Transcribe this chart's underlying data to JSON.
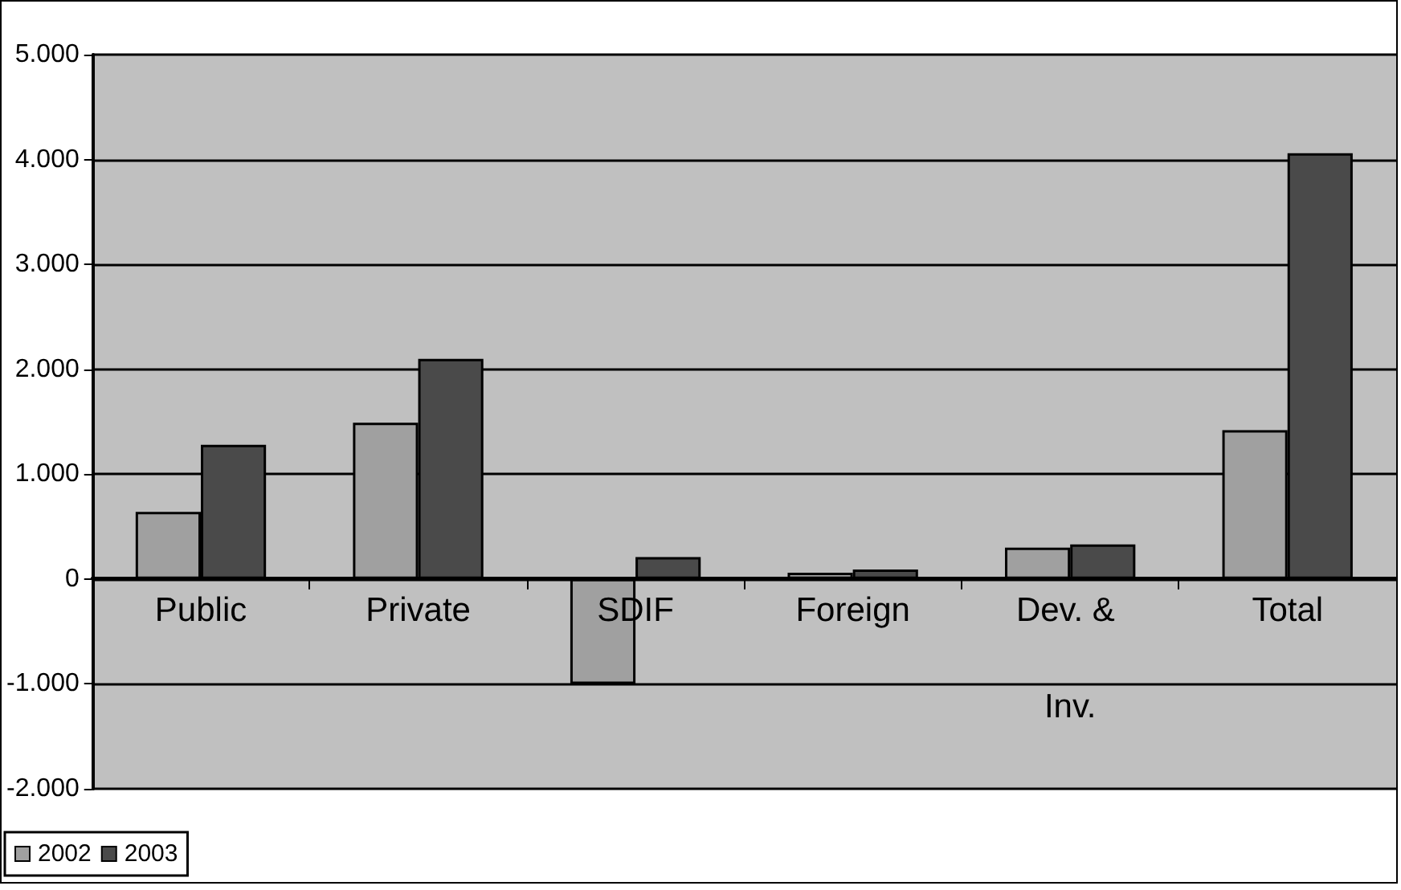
{
  "chart_data": {
    "type": "bar",
    "categories": [
      "Public",
      "Private",
      "SDIF",
      "Foreign",
      "Dev. & Inv.",
      "Total"
    ],
    "series": [
      {
        "name": "2002",
        "color": "#a0a0a0",
        "values": [
          640,
          1490,
          -1000,
          60,
          300,
          1420
        ]
      },
      {
        "name": "2003",
        "color": "#4a4a4a",
        "values": [
          1280,
          2100,
          210,
          90,
          330,
          4060
        ]
      }
    ],
    "ylim": [
      -2000,
      5000
    ],
    "yticks": [
      {
        "value": -2000,
        "label": "-2.000"
      },
      {
        "value": -1000,
        "label": "-1.000"
      },
      {
        "value": 0,
        "label": "0"
      },
      {
        "value": 1000,
        "label": "1.000"
      },
      {
        "value": 2000,
        "label": "2.000"
      },
      {
        "value": 3000,
        "label": "3.000"
      },
      {
        "value": 4000,
        "label": "4.000"
      },
      {
        "value": 5000,
        "label": "5.000"
      }
    ],
    "grid": "y",
    "legend": "bottom left"
  }
}
